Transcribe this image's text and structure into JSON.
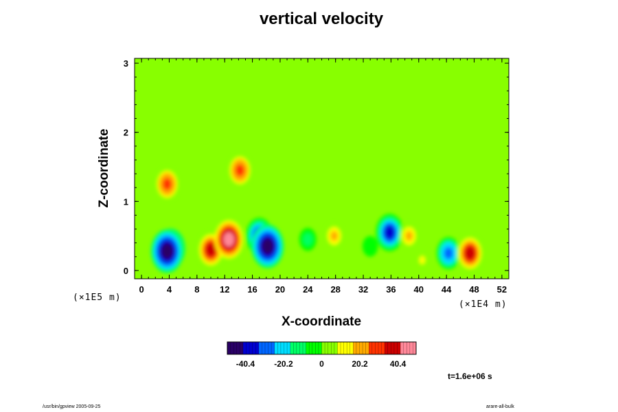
{
  "chart_data": {
    "type": "heatmap",
    "title": "vertical velocity",
    "xlabel": "X-coordinate",
    "ylabel": "Z-coordinate",
    "x_unit_label": "(×1E4 m)",
    "y_unit_label": "(×1E5 m)",
    "xlim": [
      -1,
      53
    ],
    "ylim": [
      -0.12,
      3.07
    ],
    "xticks": [
      "0",
      "4",
      "8",
      "12",
      "16",
      "20",
      "24",
      "28",
      "32",
      "36",
      "40",
      "44",
      "48",
      "52"
    ],
    "yticks": [
      "0",
      "1",
      "2",
      "3"
    ],
    "background_value": 0,
    "features": [
      {
        "x": 4.2,
        "z": 0.32,
        "value": -44
      },
      {
        "x": 3.7,
        "z": 0.28,
        "value": -52
      },
      {
        "x": 10.0,
        "z": 0.3,
        "value": 38
      },
      {
        "x": 12.6,
        "z": 0.45,
        "value": 42
      },
      {
        "x": 17.0,
        "z": 0.5,
        "value": -38
      },
      {
        "x": 18.2,
        "z": 0.35,
        "value": -52
      },
      {
        "x": 27.8,
        "z": 0.5,
        "value": 18
      },
      {
        "x": 35.8,
        "z": 0.55,
        "value": -40
      },
      {
        "x": 38.6,
        "z": 0.5,
        "value": 18
      },
      {
        "x": 44.3,
        "z": 0.25,
        "value": -30
      },
      {
        "x": 47.4,
        "z": 0.25,
        "value": 38
      },
      {
        "x": 14.2,
        "z": 1.45,
        "value": 30
      },
      {
        "x": 3.7,
        "z": 1.25,
        "value": 30
      },
      {
        "x": 24.0,
        "z": 0.45,
        "value": -12
      },
      {
        "x": 33.0,
        "z": 0.35,
        "value": -8
      },
      {
        "x": 40.5,
        "z": 0.15,
        "value": 10
      }
    ],
    "colorbar": {
      "ticks": [
        "-40.4",
        "-20.2",
        "0",
        "20.2",
        "40.4"
      ],
      "tick_values": [
        -40.4,
        -20.2,
        0,
        20.2,
        40.4
      ],
      "range": [
        -50,
        50
      ],
      "colors": [
        "#2a0066",
        "#0000d0",
        "#0066ff",
        "#00ddff",
        "#00ff66",
        "#00ff00",
        "#88ff00",
        "#ffff00",
        "#ffaa00",
        "#ff3300",
        "#cc0000",
        "#ff8899"
      ]
    }
  },
  "annotation": "t=1.6e+06 s",
  "footer_left": "/usr/bin/gpview 2005-09-25",
  "footer_right": "arare-all-bulk"
}
